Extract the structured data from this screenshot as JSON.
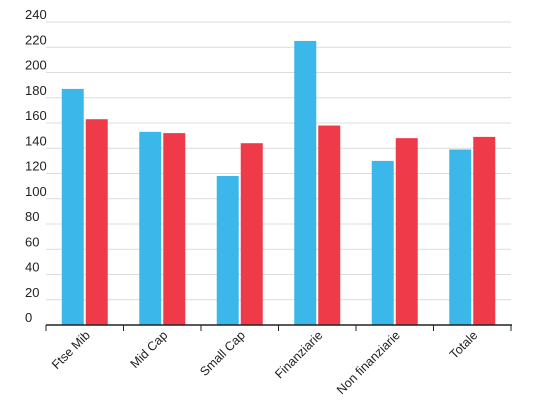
{
  "chart_data": {
    "type": "bar",
    "categories": [
      "Ftse Mib",
      "Mid Cap",
      "Small Cap",
      "Finanziarie",
      "Non finanziarie",
      "Totale"
    ],
    "series": [
      {
        "values": [
          187,
          153,
          118,
          225,
          130,
          139
        ],
        "color": "#3bb7ea"
      },
      {
        "values": [
          163,
          152,
          144,
          158,
          148,
          149
        ],
        "color": "#ef3a4a"
      }
    ],
    "title": "",
    "xlabel": "",
    "ylabel": "",
    "ylim": [
      0,
      240
    ],
    "yticks": [
      0,
      20,
      40,
      60,
      80,
      100,
      120,
      140,
      160,
      180,
      200,
      220,
      240
    ],
    "grid": true,
    "legend": "none"
  }
}
